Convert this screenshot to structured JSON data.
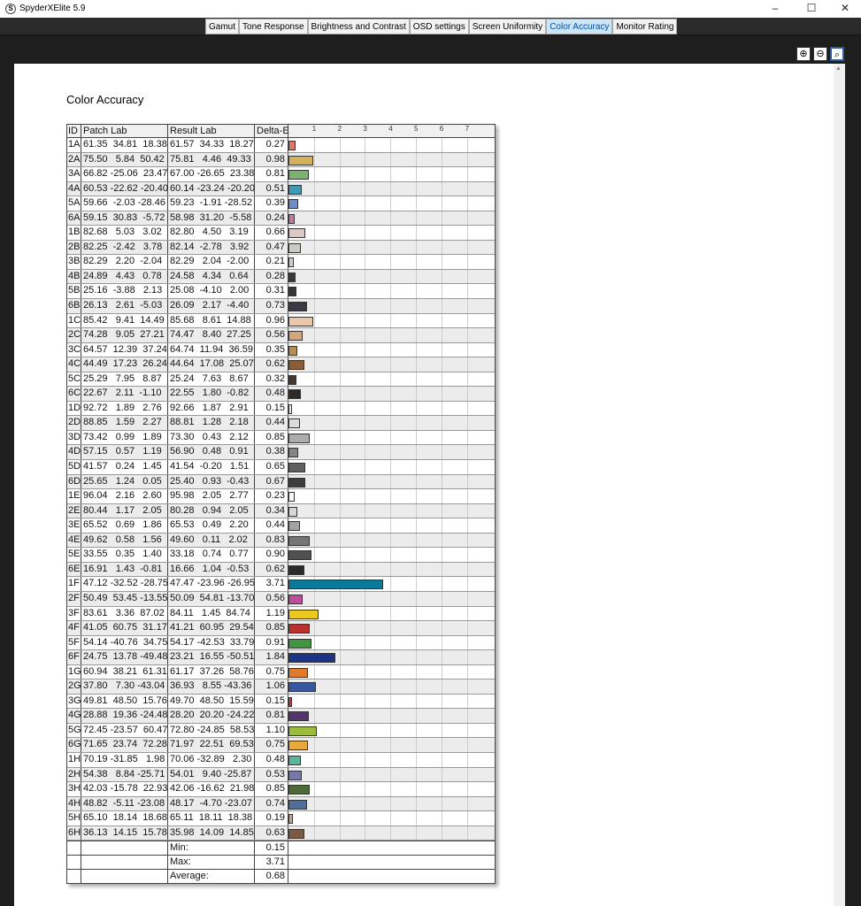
{
  "window": {
    "title": "SpyderXElite 5.9",
    "app_icon": "S",
    "minimize": "–",
    "maximize": "☐",
    "close": "✕"
  },
  "tabs": [
    {
      "label": "Gamut"
    },
    {
      "label": "Tone Response"
    },
    {
      "label": "Brightness and Contrast"
    },
    {
      "label": "OSD settings"
    },
    {
      "label": "Screen Uniformity"
    },
    {
      "label": "Color Accuracy",
      "active": true
    },
    {
      "label": "Monitor Rating"
    }
  ],
  "zoom": {
    "zoom_in": "⊕",
    "zoom_out": "⊖",
    "zoom_fit": "⌕"
  },
  "page_title": "Color Accuracy",
  "table": {
    "headers": {
      "id": "ID",
      "patch": "Patch Lab",
      "result": "Result Lab",
      "delta": "Delta-E"
    },
    "axis_ticks": [
      "1",
      "2",
      "3",
      "4",
      "5",
      "6",
      "7"
    ],
    "rows": [
      {
        "id": "1A",
        "patch": "61.35  34.81  18.38",
        "result": "61.57  34.33  18.27",
        "delta": "0.27",
        "color": "#d9776b"
      },
      {
        "id": "2A",
        "patch": "75.50   5.84  50.42",
        "result": "75.81   4.46  49.33",
        "delta": "0.98",
        "color": "#d4b25a"
      },
      {
        "id": "3A",
        "patch": "66.82 -25.06  23.47",
        "result": "67.00 -26.65  23.38",
        "delta": "0.81",
        "color": "#7bb26f"
      },
      {
        "id": "4A",
        "patch": "60.53 -22.62 -20.40",
        "result": "60.14 -23.24 -20.20",
        "delta": "0.51",
        "color": "#3f9ab6"
      },
      {
        "id": "5A",
        "patch": "59.66  -2.03 -28.46",
        "result": "59.23  -1.91 -28.52",
        "delta": "0.39",
        "color": "#6f8dc9"
      },
      {
        "id": "6A",
        "patch": "59.15  30.83  -5.72",
        "result": "58.98  31.20  -5.58",
        "delta": "0.24",
        "color": "#c77aa6"
      },
      {
        "id": "1B",
        "patch": "82.68   5.03   3.02",
        "result": "82.80   4.50   3.19",
        "delta": "0.66",
        "color": "#dcc9c6"
      },
      {
        "id": "2B",
        "patch": "82.25  -2.42   3.78",
        "result": "82.14  -2.78   3.92",
        "delta": "0.47",
        "color": "#c9ccc4"
      },
      {
        "id": "3B",
        "patch": "82.29   2.20  -2.04",
        "result": "82.29   2.04  -2.00",
        "delta": "0.21",
        "color": "#d3ccd3"
      },
      {
        "id": "4B",
        "patch": "24.89   4.43   0.78",
        "result": "24.58   4.34   0.64",
        "delta": "0.28",
        "color": "#3b3637"
      },
      {
        "id": "5B",
        "patch": "25.16  -3.88   2.13",
        "result": "25.08  -4.10   2.00",
        "delta": "0.31",
        "color": "#333833"
      },
      {
        "id": "6B",
        "patch": "26.13   2.61  -5.03",
        "result": "26.09   2.17  -4.40",
        "delta": "0.73",
        "color": "#3b3a44"
      },
      {
        "id": "1C",
        "patch": "85.42   9.41  14.49",
        "result": "85.68   8.61  14.88",
        "delta": "0.96",
        "color": "#e8c8a8"
      },
      {
        "id": "2C",
        "patch": "74.28   9.05  27.21",
        "result": "74.47   8.40  27.25",
        "delta": "0.56",
        "color": "#d2a67a"
      },
      {
        "id": "3C",
        "patch": "64.57  12.39  37.24",
        "result": "64.74  11.94  36.59",
        "delta": "0.35",
        "color": "#b68d58"
      },
      {
        "id": "4C",
        "patch": "44.49  17.23  26.24",
        "result": "44.64  17.08  25.07",
        "delta": "0.62",
        "color": "#8b5c38"
      },
      {
        "id": "5C",
        "patch": "25.29   7.95   8.87",
        "result": "25.24   7.63   8.67",
        "delta": "0.32",
        "color": "#4a372b"
      },
      {
        "id": "6C",
        "patch": "22.67   2.11  -1.10",
        "result": "22.55   1.80  -0.82",
        "delta": "0.48",
        "color": "#302a26"
      },
      {
        "id": "1D",
        "patch": "92.72   1.89   2.76",
        "result": "92.66   1.87   2.91",
        "delta": "0.15",
        "color": "#ececec"
      },
      {
        "id": "2D",
        "patch": "88.85   1.59   2.27",
        "result": "88.81   1.28   2.18",
        "delta": "0.44",
        "color": "#dcdcdc"
      },
      {
        "id": "3D",
        "patch": "73.42   0.99   1.89",
        "result": "73.30   0.43   2.12",
        "delta": "0.85",
        "color": "#adadad"
      },
      {
        "id": "4D",
        "patch": "57.15   0.57   1.19",
        "result": "56.90   0.48   0.91",
        "delta": "0.38",
        "color": "#858585"
      },
      {
        "id": "5D",
        "patch": "41.57   0.24   1.45",
        "result": "41.54  -0.20   1.51",
        "delta": "0.65",
        "color": "#5f5f5f"
      },
      {
        "id": "6D",
        "patch": "25.65   1.24   0.05",
        "result": "25.40   0.93  -0.43",
        "delta": "0.67",
        "color": "#3d3d3d"
      },
      {
        "id": "1E",
        "patch": "96.04   2.16   2.60",
        "result": "95.98   2.05   2.77",
        "delta": "0.23",
        "color": "#f8f8f8"
      },
      {
        "id": "2E",
        "patch": "80.44   1.17   2.05",
        "result": "80.28   0.94   2.05",
        "delta": "0.34",
        "color": "#d6d6d6"
      },
      {
        "id": "3E",
        "patch": "65.52   0.69   1.86",
        "result": "65.53   0.49   2.20",
        "delta": "0.44",
        "color": "#a3a3a3"
      },
      {
        "id": "4E",
        "patch": "49.62   0.58   1.56",
        "result": "49.60   0.11   2.02",
        "delta": "0.83",
        "color": "#757575"
      },
      {
        "id": "5E",
        "patch": "33.55   0.35   1.40",
        "result": "33.18   0.74   0.77",
        "delta": "0.90",
        "color": "#505050"
      },
      {
        "id": "6E",
        "patch": "16.91   1.43  -0.81",
        "result": "16.66   1.04  -0.53",
        "delta": "0.62",
        "color": "#2a2a2a"
      },
      {
        "id": "1F",
        "patch": "47.12 -32.52 -28.75",
        "result": "47.47 -23.96 -26.95",
        "delta": "3.71",
        "color": "#0a7a9a"
      },
      {
        "id": "2F",
        "patch": "50.49  53.45 -13.55",
        "result": "50.09  54.81 -13.70",
        "delta": "0.56",
        "color": "#c04c9c"
      },
      {
        "id": "3F",
        "patch": "83.61   3.36  87.02",
        "result": "84.11   1.45  84.74",
        "delta": "1.19",
        "color": "#ecc91f"
      },
      {
        "id": "4F",
        "patch": "41.05  60.75  31.17",
        "result": "41.21  60.95  29.54",
        "delta": "0.85",
        "color": "#b8312f"
      },
      {
        "id": "5F",
        "patch": "54.14 -40.76  34.75",
        "result": "54.17 -42.53  33.79",
        "delta": "0.91",
        "color": "#3f963f"
      },
      {
        "id": "6F",
        "patch": "24.75  13.78 -49.48",
        "result": "23.21  16.55 -50.51",
        "delta": "1.84",
        "color": "#1d3385"
      },
      {
        "id": "1G",
        "patch": "60.94  38.21  61.31",
        "result": "61.17  37.26  58.76",
        "delta": "0.75",
        "color": "#de7a2a"
      },
      {
        "id": "2G",
        "patch": "37.80   7.30 -43.04",
        "result": "36.93   8.55 -43.36",
        "delta": "1.06",
        "color": "#3a56a0"
      },
      {
        "id": "3G",
        "patch": "49.81  48.50  15.76",
        "result": "49.70  48.50  15.59",
        "delta": "0.15",
        "color": "#c33c3c"
      },
      {
        "id": "4G",
        "patch": "28.88  19.36 -24.48",
        "result": "28.20  20.20 -24.22",
        "delta": "0.81",
        "color": "#51356c"
      },
      {
        "id": "5G",
        "patch": "72.45 -23.57  60.47",
        "result": "72.80 -24.85  58.53",
        "delta": "1.10",
        "color": "#9bbd3b"
      },
      {
        "id": "6G",
        "patch": "71.65  23.74  72.28",
        "result": "71.97  22.51  69.53",
        "delta": "0.75",
        "color": "#e8a83a"
      },
      {
        "id": "1H",
        "patch": "70.19 -31.85   1.98",
        "result": "70.06 -32.89   2.30",
        "delta": "0.48",
        "color": "#5ab59a"
      },
      {
        "id": "2H",
        "patch": "54.38   8.84 -25.71",
        "result": "54.01   9.40 -25.87",
        "delta": "0.53",
        "color": "#7878ad"
      },
      {
        "id": "3H",
        "patch": "42.03 -15.78  22.93",
        "result": "42.06 -16.62  21.98",
        "delta": "0.85",
        "color": "#4e6a3a"
      },
      {
        "id": "4H",
        "patch": "48.82  -5.11 -23.08",
        "result": "48.17  -4.70 -23.07",
        "delta": "0.74",
        "color": "#4e6e9e"
      },
      {
        "id": "5H",
        "patch": "65.10  18.14  18.68",
        "result": "65.11  18.11  18.38",
        "delta": "0.19",
        "color": "#d6a090"
      },
      {
        "id": "6H",
        "patch": "36.13  14.15  15.78",
        "result": "35.98  14.09  14.85",
        "delta": "0.63",
        "color": "#7a5a42"
      }
    ],
    "summary": [
      {
        "label": "Min:",
        "value": "0.15"
      },
      {
        "label": "Max:",
        "value": "3.71"
      },
      {
        "label": "Average:",
        "value": "0.68"
      }
    ]
  }
}
